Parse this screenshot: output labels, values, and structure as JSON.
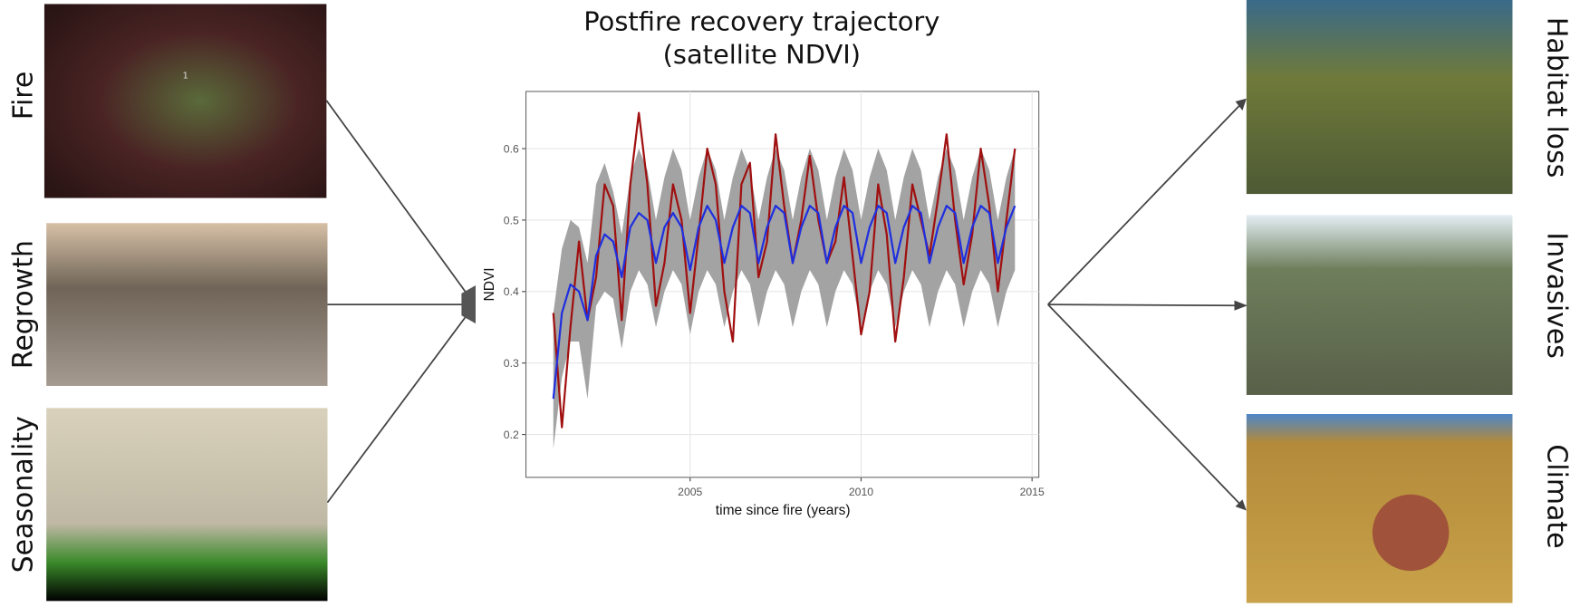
{
  "left_panels": [
    {
      "label": "Fire",
      "annotation": "1"
    },
    {
      "label": "Regrowth"
    },
    {
      "label": "Seasonality"
    }
  ],
  "right_panels": [
    {
      "label": "Habitat loss"
    },
    {
      "label": "Invasives"
    },
    {
      "label": "Climate"
    }
  ],
  "chart_data": {
    "type": "line",
    "title_lines": [
      "Postfire recovery trajectory",
      "(satellite NDVI)"
    ],
    "x_label": "time since fire (years)",
    "y_label": "NDVI",
    "xlim": [
      2000.2,
      2015.2
    ],
    "xticks": [
      2005,
      2010,
      2015
    ],
    "ylim": [
      0.14,
      0.68
    ],
    "yticks": [
      0.2,
      0.3,
      0.4,
      0.5,
      0.6
    ],
    "grid": true,
    "x": [
      2001,
      2001.25,
      2001.5,
      2001.75,
      2002,
      2002.25,
      2002.5,
      2002.75,
      2003,
      2003.25,
      2003.5,
      2003.75,
      2004,
      2004.25,
      2004.5,
      2004.75,
      2005,
      2005.25,
      2005.5,
      2005.75,
      2006,
      2006.25,
      2006.5,
      2006.75,
      2007,
      2007.25,
      2007.5,
      2007.75,
      2008,
      2008.25,
      2008.5,
      2008.75,
      2009,
      2009.25,
      2009.5,
      2009.75,
      2010,
      2010.25,
      2010.5,
      2010.75,
      2011,
      2011.25,
      2011.5,
      2011.75,
      2012,
      2012.25,
      2012.5,
      2012.75,
      2013,
      2013.25,
      2013.5,
      2013.75,
      2014,
      2014.25,
      2014.5
    ],
    "band": {
      "color": "#999999",
      "low": [
        0.18,
        0.28,
        0.33,
        0.33,
        0.25,
        0.38,
        0.4,
        0.39,
        0.32,
        0.4,
        0.43,
        0.41,
        0.35,
        0.4,
        0.43,
        0.41,
        0.34,
        0.4,
        0.43,
        0.41,
        0.35,
        0.4,
        0.43,
        0.41,
        0.35,
        0.4,
        0.43,
        0.41,
        0.35,
        0.4,
        0.43,
        0.41,
        0.35,
        0.4,
        0.43,
        0.41,
        0.35,
        0.4,
        0.43,
        0.41,
        0.35,
        0.4,
        0.43,
        0.41,
        0.35,
        0.4,
        0.43,
        0.41,
        0.35,
        0.4,
        0.43,
        0.41,
        0.35,
        0.4,
        0.43
      ],
      "high": [
        0.37,
        0.46,
        0.5,
        0.49,
        0.44,
        0.55,
        0.58,
        0.54,
        0.48,
        0.56,
        0.6,
        0.57,
        0.5,
        0.56,
        0.6,
        0.57,
        0.5,
        0.56,
        0.6,
        0.57,
        0.5,
        0.56,
        0.6,
        0.57,
        0.5,
        0.56,
        0.6,
        0.57,
        0.5,
        0.56,
        0.6,
        0.57,
        0.5,
        0.56,
        0.6,
        0.57,
        0.5,
        0.56,
        0.6,
        0.57,
        0.5,
        0.56,
        0.6,
        0.57,
        0.5,
        0.56,
        0.6,
        0.57,
        0.5,
        0.56,
        0.6,
        0.57,
        0.5,
        0.56,
        0.6
      ]
    },
    "series": [
      {
        "color": "#a01010",
        "values": [
          0.37,
          0.21,
          0.35,
          0.47,
          0.36,
          0.42,
          0.55,
          0.52,
          0.36,
          0.55,
          0.65,
          0.55,
          0.38,
          0.44,
          0.55,
          0.5,
          0.37,
          0.48,
          0.6,
          0.55,
          0.4,
          0.33,
          0.55,
          0.58,
          0.42,
          0.47,
          0.62,
          0.52,
          0.44,
          0.5,
          0.59,
          0.5,
          0.44,
          0.47,
          0.56,
          0.45,
          0.34,
          0.4,
          0.55,
          0.48,
          0.33,
          0.42,
          0.55,
          0.5,
          0.45,
          0.53,
          0.62,
          0.5,
          0.41,
          0.48,
          0.6,
          0.52,
          0.4,
          0.5,
          0.6
        ]
      },
      {
        "color": "#1f2fe0",
        "values": [
          0.25,
          0.37,
          0.41,
          0.4,
          0.36,
          0.45,
          0.48,
          0.47,
          0.42,
          0.49,
          0.51,
          0.5,
          0.44,
          0.49,
          0.51,
          0.49,
          0.43,
          0.49,
          0.52,
          0.5,
          0.44,
          0.49,
          0.52,
          0.51,
          0.44,
          0.49,
          0.52,
          0.51,
          0.44,
          0.49,
          0.52,
          0.51,
          0.44,
          0.49,
          0.52,
          0.51,
          0.44,
          0.49,
          0.52,
          0.51,
          0.44,
          0.49,
          0.52,
          0.51,
          0.44,
          0.49,
          0.52,
          0.51,
          0.44,
          0.49,
          0.52,
          0.51,
          0.44,
          0.49,
          0.52
        ]
      }
    ]
  }
}
